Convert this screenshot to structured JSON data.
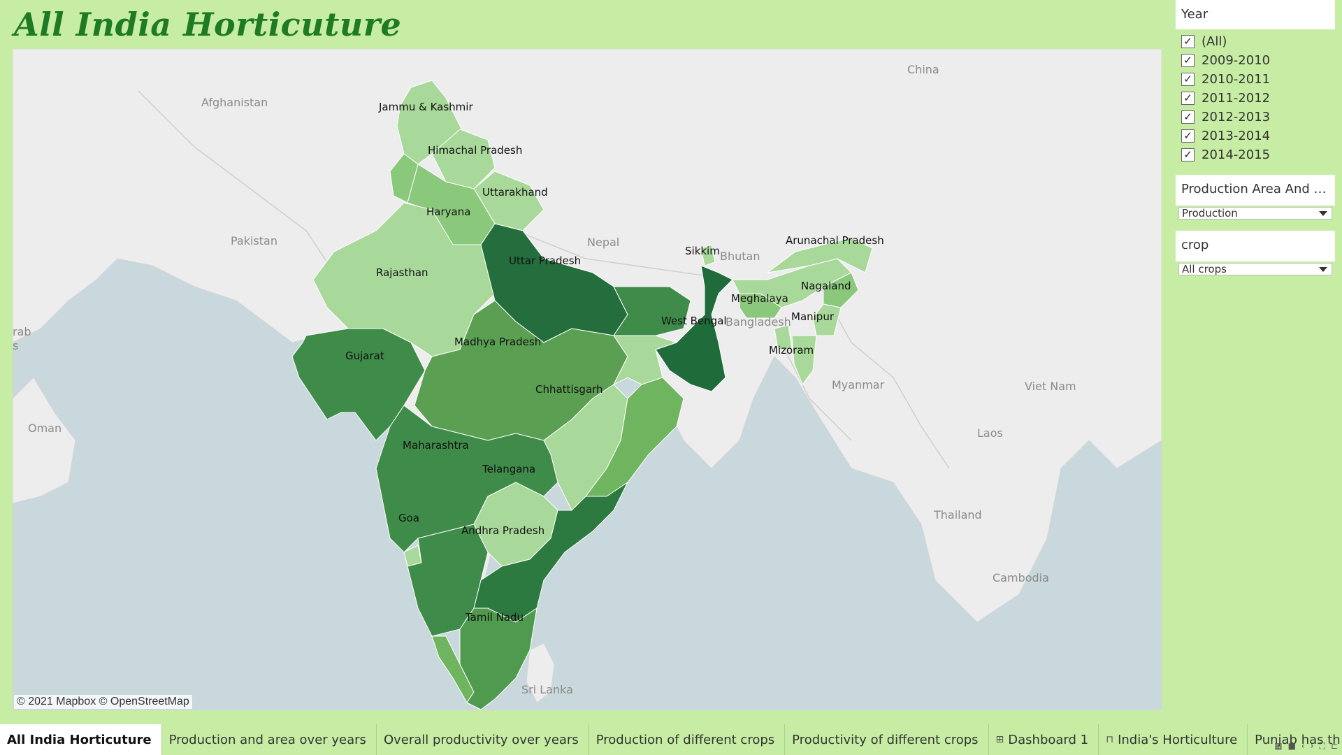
{
  "title": "All India Horticuture",
  "map": {
    "attribution": "© 2021 Mapbox © OpenStreetMap",
    "countries": [
      "Afghanistan",
      "Pakistan",
      "China",
      "Nepal",
      "Bhutan",
      "Bangladesh",
      "Myanmar",
      "Oman",
      "Laos",
      "Viet Nam",
      "Thailand",
      "Cambodia",
      "Sri Lanka",
      "rab",
      "s"
    ],
    "states": [
      {
        "name": "Jammu & Kashmir",
        "color": "#a9d99a"
      },
      {
        "name": "Himachal Pradesh",
        "color": "#a9d99a"
      },
      {
        "name": "Uttarakhand",
        "color": "#a9d99a"
      },
      {
        "name": "Haryana",
        "color": "#8ac97c"
      },
      {
        "name": "Rajasthan",
        "color": "#a9d99a"
      },
      {
        "name": "Uttar Pradesh",
        "color": "#236e3c"
      },
      {
        "name": "Sikkim",
        "color": "#a9d99a"
      },
      {
        "name": "Arunachal Pradesh",
        "color": "#a9d99a"
      },
      {
        "name": "Nagaland",
        "color": "#8ac97c"
      },
      {
        "name": "Meghalaya",
        "color": "#8ac97c"
      },
      {
        "name": "Manipur",
        "color": "#a9d99a"
      },
      {
        "name": "Mizoram",
        "color": "#a9d99a"
      },
      {
        "name": "West Bengal",
        "color": "#1f6b3a"
      },
      {
        "name": "Gujarat",
        "color": "#3f8c4a"
      },
      {
        "name": "Madhya Pradesh",
        "color": "#5a9f52"
      },
      {
        "name": "Chhattisgarh",
        "color": "#a9d99a"
      },
      {
        "name": "Maharashtra",
        "color": "#3f8c4a"
      },
      {
        "name": "Telangana",
        "color": "#a9d99a"
      },
      {
        "name": "Goa",
        "color": "#a9d99a"
      },
      {
        "name": "Andhra Pradesh",
        "color": "#2c7a3f"
      },
      {
        "name": "Tamil Nadu",
        "color": "#4f9a4e"
      }
    ]
  },
  "filters": {
    "year": {
      "title": "Year",
      "items": [
        "(All)",
        "2009-2010",
        "2010-2011",
        "2011-2012",
        "2012-2013",
        "2013-2014",
        "2014-2015"
      ],
      "checked": [
        true,
        true,
        true,
        true,
        true,
        true,
        true
      ]
    },
    "measure": {
      "title": "Production Area And pr...",
      "value": "Production"
    },
    "crop": {
      "title": "crop",
      "value": "All crops"
    }
  },
  "tabs": [
    {
      "label": "All India Horticuture",
      "icon": ""
    },
    {
      "label": "Production and area over years",
      "icon": ""
    },
    {
      "label": "Overall productivity over years",
      "icon": ""
    },
    {
      "label": "Production of different crops",
      "icon": ""
    },
    {
      "label": "Productivity of different crops",
      "icon": ""
    },
    {
      "label": "Dashboard 1",
      "icon": "dashboard-icon"
    },
    {
      "label": "India's Horticulture",
      "icon": "story-icon"
    },
    {
      "label": "Punjab has th",
      "icon": ""
    }
  ]
}
